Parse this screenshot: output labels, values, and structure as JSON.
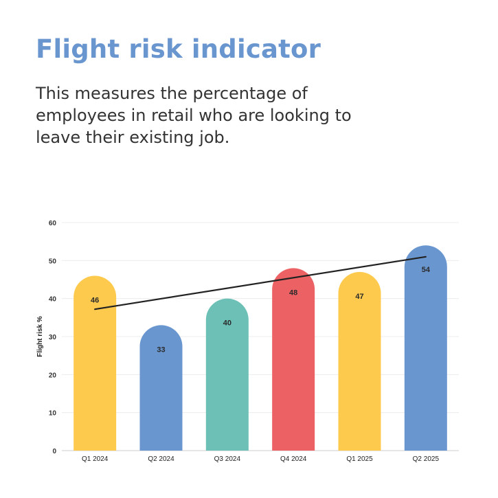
{
  "header": {
    "title": "Flight risk indicator",
    "subtitle": "This measures the percentage of employees in retail who are looking to leave their existing job."
  },
  "chart_data": {
    "type": "bar",
    "categories": [
      "Q1 2024",
      "Q2 2024",
      "Q3 2024",
      "Q4 2024",
      "Q1 2025",
      "Q2 2025"
    ],
    "values": [
      46,
      33,
      40,
      48,
      47,
      54
    ],
    "bar_colors": [
      "#fdca4d",
      "#6a96d0",
      "#6cc0b6",
      "#ec6264",
      "#fdca4d",
      "#6a96d0"
    ],
    "ylabel": "Flight risk %",
    "ylim": [
      0,
      60
    ],
    "yticks": [
      0,
      10,
      20,
      30,
      40,
      50,
      60
    ],
    "grid": true,
    "trendline": {
      "color": "#222222",
      "start": 37.2,
      "end": 51.0
    }
  }
}
